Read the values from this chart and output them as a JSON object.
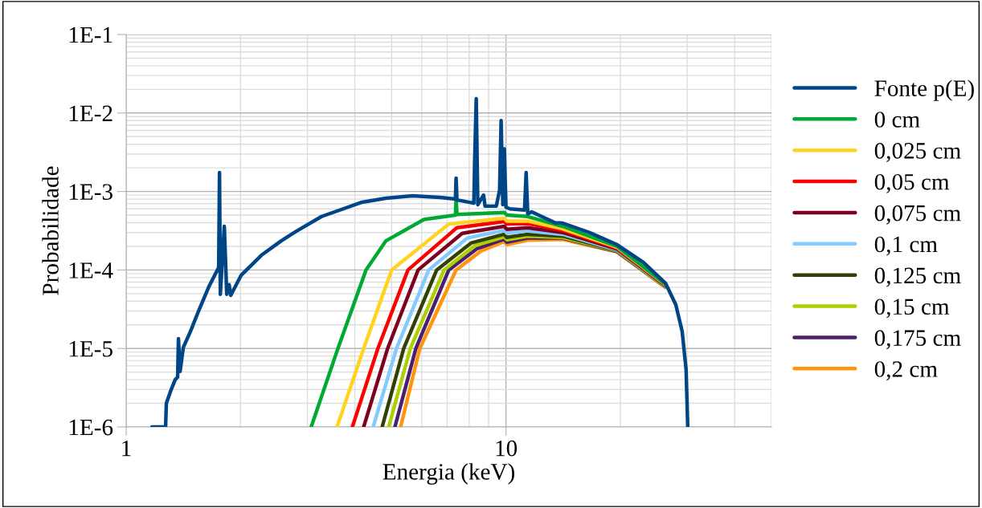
{
  "chart_data": {
    "type": "line",
    "xlabel": "Energia (keV)",
    "ylabel": "Probabilidade",
    "log": "xy",
    "xlim": [
      1,
      50
    ],
    "ylim": [
      1e-06,
      0.1
    ],
    "xticks": [
      1,
      10
    ],
    "yticks": [
      {
        "value": 1e-06,
        "label": "1E-6"
      },
      {
        "value": 1e-05,
        "label": "1E-5"
      },
      {
        "value": 0.0001,
        "label": "1E-4"
      },
      {
        "value": 0.001,
        "label": "1E-3"
      },
      {
        "value": 0.01,
        "label": "1E-2"
      },
      {
        "value": 0.1,
        "label": "1E-1"
      }
    ],
    "grid": true,
    "legend": "right",
    "marker": "none",
    "line_style": "solid",
    "series": [
      {
        "name": "Fonte p(E)",
        "color": "#004586",
        "x": [
          1.169,
          1.27,
          1.276,
          1.314,
          1.346,
          1.366,
          1.373,
          1.387,
          1.414,
          1.477,
          1.551,
          1.653,
          1.752,
          1.761,
          1.77,
          1.813,
          1.84,
          1.867,
          1.885,
          2.009,
          2.27,
          2.56,
          2.8,
          3.27,
          4.18,
          4.83,
          5.68,
          6.7,
          7.36,
          7.39,
          7.43,
          8.23,
          8.27,
          8.35,
          8.43,
          8.73,
          8.81,
          9.43,
          9.62,
          9.71,
          9.81,
          9.9,
          10.0,
          10.25,
          11.19,
          11.3,
          11.41,
          11.69,
          13.46,
          14.1,
          16.6,
          19.6,
          23.0,
          26.3,
          28.0,
          29.1,
          29.8,
          30.1
        ],
        "values": [
          1e-06,
          1e-06,
          2e-06,
          3e-06,
          4e-06,
          4.3e-06,
          1.33e-05,
          5.1e-06,
          1.03e-05,
          1.65e-05,
          3e-05,
          6.2e-05,
          0.000108,
          0.00174,
          4.9e-05,
          0.00036,
          4.9e-05,
          6.5e-05,
          4.75e-05,
          8.6e-05,
          0.000154,
          0.000235,
          0.00031,
          0.00048,
          0.00073,
          0.00082,
          0.00088,
          0.00084,
          0.0008,
          0.00148,
          0.00078,
          0.00071,
          0.00237,
          0.0152,
          0.00068,
          0.0009,
          0.00065,
          0.00065,
          0.00104,
          0.008,
          0.00068,
          0.0035,
          0.00063,
          0.0006,
          0.00058,
          0.00174,
          0.00052,
          0.00055,
          0.0004,
          0.000395,
          0.0003,
          0.00021,
          0.000125,
          6.8e-05,
          3.6e-05,
          1.65e-05,
          5.4e-06,
          1e-06
        ]
      },
      {
        "name": "0 cm",
        "color": "#00a933",
        "x": [
          3.07,
          3.61,
          4.28,
          4.83,
          6.08,
          7.36,
          7.39,
          7.43,
          9.9,
          10.05,
          11.4,
          14.1,
          19.6,
          26.3
        ],
        "values": [
          1e-06,
          1e-05,
          0.0001,
          0.000235,
          0.00044,
          0.0005,
          0.0008,
          0.00051,
          0.00054,
          0.0005,
          0.00048,
          0.00036,
          0.0002,
          6.6e-05
        ]
      },
      {
        "name": "0,025 cm",
        "color": "#ffd320",
        "x": [
          3.59,
          4.22,
          5.0,
          7.07,
          9.9,
          10.05,
          11.4,
          14.1,
          19.6,
          26.3
        ],
        "values": [
          1e-06,
          1e-05,
          0.0001,
          0.000385,
          0.000455,
          0.00042,
          0.00042,
          0.000335,
          0.000195,
          6.5e-05
        ]
      },
      {
        "name": "0,05 cm",
        "color": "#ff0000",
        "x": [
          3.94,
          4.6,
          5.52,
          7.43,
          9.9,
          10.05,
          11.4,
          14.1,
          19.6,
          26.3
        ],
        "values": [
          1e-06,
          1e-05,
          0.0001,
          0.000346,
          0.000415,
          0.000385,
          0.00039,
          0.00032,
          0.00019,
          6.4e-05
        ]
      },
      {
        "name": "0,075 cm",
        "color": "#7e0021",
        "x": [
          4.22,
          4.88,
          5.87,
          7.67,
          9.9,
          10.05,
          11.4,
          14.1,
          19.6,
          26.3
        ],
        "values": [
          1e-06,
          1e-05,
          0.0001,
          0.000293,
          0.00036,
          0.00033,
          0.000345,
          0.0003,
          0.000185,
          6.3e-05
        ]
      },
      {
        "name": "0,1 cm",
        "color": "#83caff",
        "x": [
          4.47,
          5.15,
          6.26,
          7.91,
          9.9,
          10.05,
          11.4,
          14.1,
          19.6,
          26.3
        ],
        "values": [
          1e-06,
          1e-05,
          0.0001,
          0.000255,
          0.00032,
          0.000295,
          0.000315,
          0.000285,
          0.00018,
          6.2e-05
        ]
      },
      {
        "name": "0,125 cm",
        "color": "#314004",
        "x": [
          4.72,
          5.38,
          6.57,
          8.11,
          9.9,
          10.05,
          11.4,
          14.1,
          19.6,
          26.3
        ],
        "values": [
          1e-06,
          1e-05,
          0.0001,
          0.000222,
          0.000285,
          0.00026,
          0.000285,
          0.00027,
          0.000178,
          6.2e-05
        ]
      },
      {
        "name": "0,15 cm",
        "color": "#aecf00",
        "x": [
          4.91,
          5.6,
          6.87,
          8.28,
          9.9,
          10.05,
          11.4,
          14.1,
          19.6,
          26.3
        ],
        "values": [
          1e-06,
          1e-05,
          0.0001,
          0.000204,
          0.000265,
          0.000243,
          0.00027,
          0.00026,
          0.000175,
          6.1e-05
        ]
      },
      {
        "name": "0,175 cm",
        "color": "#4b1f6f",
        "x": [
          5.1,
          5.79,
          7.07,
          8.41,
          9.9,
          10.05,
          11.4,
          14.1,
          19.6,
          26.3
        ],
        "values": [
          1e-06,
          1e-05,
          0.0001,
          0.000188,
          0.000247,
          0.000226,
          0.000255,
          0.000255,
          0.000172,
          6.1e-05
        ]
      },
      {
        "name": "0,2 cm",
        "color": "#ff950e",
        "x": [
          5.28,
          5.93,
          7.39,
          8.6,
          9.9,
          10.05,
          11.4,
          14.1,
          19.6,
          26.3
        ],
        "values": [
          1e-06,
          1e-05,
          0.0001,
          0.000175,
          0.00023,
          0.00021,
          0.00024,
          0.000245,
          0.00017,
          6e-05
        ]
      }
    ]
  }
}
